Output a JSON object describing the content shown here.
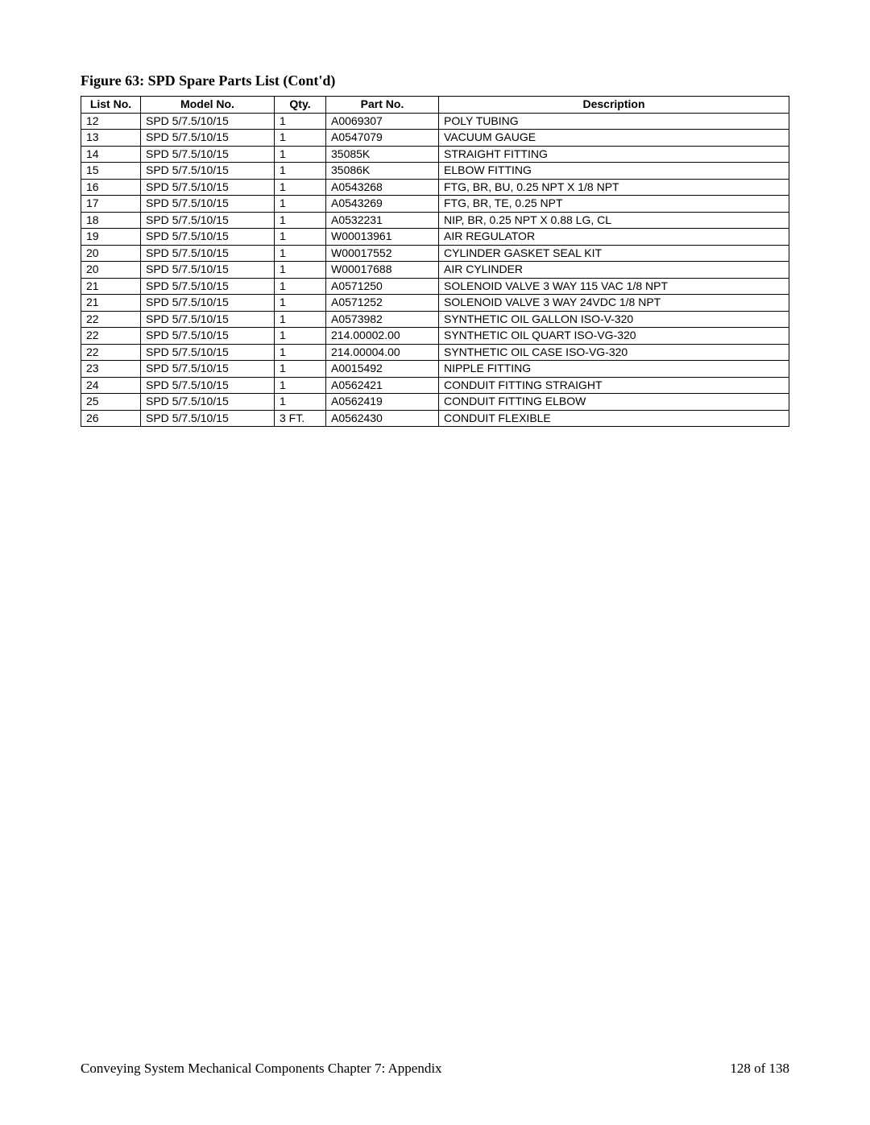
{
  "figure_title": "Figure 63: SPD Spare Parts List (Cont'd)",
  "table": {
    "headers": {
      "list_no": "List No.",
      "model_no": "Model No.",
      "qty": "Qty.",
      "part_no": "Part No.",
      "description": "Description"
    },
    "rows": [
      {
        "list_no": "12",
        "model_no": "SPD 5/7.5/10/15",
        "qty": "1",
        "part_no": "A0069307",
        "description": "POLY TUBING"
      },
      {
        "list_no": "13",
        "model_no": "SPD 5/7.5/10/15",
        "qty": "1",
        "part_no": "A0547079",
        "description": "VACUUM GAUGE"
      },
      {
        "list_no": "14",
        "model_no": "SPD 5/7.5/10/15",
        "qty": "1",
        "part_no": "35085K",
        "description": "STRAIGHT FITTING"
      },
      {
        "list_no": "15",
        "model_no": "SPD 5/7.5/10/15",
        "qty": "1",
        "part_no": "35086K",
        "description": "ELBOW FITTING"
      },
      {
        "list_no": "16",
        "model_no": "SPD 5/7.5/10/15",
        "qty": "1",
        "part_no": "A0543268",
        "description": "FTG, BR, BU, 0.25 NPT X 1/8 NPT"
      },
      {
        "list_no": "17",
        "model_no": "SPD 5/7.5/10/15",
        "qty": "1",
        "part_no": "A0543269",
        "description": "FTG, BR, TE, 0.25 NPT"
      },
      {
        "list_no": "18",
        "model_no": "SPD 5/7.5/10/15",
        "qty": "1",
        "part_no": "A0532231",
        "description": "NIP, BR, 0.25 NPT X 0.88 LG, CL"
      },
      {
        "list_no": "19",
        "model_no": "SPD 5/7.5/10/15",
        "qty": "1",
        "part_no": "W00013961",
        "description": "AIR REGULATOR"
      },
      {
        "list_no": "20",
        "model_no": "SPD 5/7.5/10/15",
        "qty": "1",
        "part_no": "W00017552",
        "description": "CYLINDER GASKET SEAL KIT"
      },
      {
        "list_no": "20",
        "model_no": "SPD 5/7.5/10/15",
        "qty": "1",
        "part_no": "W00017688",
        "description": "AIR CYLINDER"
      },
      {
        "list_no": "21",
        "model_no": "SPD 5/7.5/10/15",
        "qty": "1",
        "part_no": "A0571250",
        "description": "SOLENOID VALVE 3 WAY 115 VAC 1/8 NPT"
      },
      {
        "list_no": "21",
        "model_no": "SPD 5/7.5/10/15",
        "qty": "1",
        "part_no": "A0571252",
        "description": "SOLENOID VALVE  3 WAY 24VDC 1/8 NPT"
      },
      {
        "list_no": "22",
        "model_no": "SPD 5/7.5/10/15",
        "qty": "1",
        "part_no": "A0573982",
        "description": "SYNTHETIC OIL GALLON ISO-V-320"
      },
      {
        "list_no": "22",
        "model_no": "SPD 5/7.5/10/15",
        "qty": "1",
        "part_no": "214.00002.00",
        "description": "SYNTHETIC OIL QUART ISO-VG-320"
      },
      {
        "list_no": "22",
        "model_no": "SPD 5/7.5/10/15",
        "qty": "1",
        "part_no": "214.00004.00",
        "description": "SYNTHETIC OIL CASE ISO-VG-320"
      },
      {
        "list_no": "23",
        "model_no": "SPD 5/7.5/10/15",
        "qty": "1",
        "part_no": "A0015492",
        "description": "NIPPLE FITTING"
      },
      {
        "list_no": "24",
        "model_no": "SPD 5/7.5/10/15",
        "qty": "1",
        "part_no": "A0562421",
        "description": "CONDUIT FITTING STRAIGHT"
      },
      {
        "list_no": "25",
        "model_no": "SPD 5/7.5/10/15",
        "qty": "1",
        "part_no": "A0562419",
        "description": "CONDUIT FITTING ELBOW"
      },
      {
        "list_no": "26",
        "model_no": "SPD 5/7.5/10/15",
        "qty": "3 FT.",
        "part_no": "A0562430",
        "description": "CONDUIT FLEXIBLE"
      }
    ]
  },
  "footer": {
    "left": "Conveying System Mechanical Components    Chapter 7: Appendix",
    "right": "128 of 138"
  }
}
